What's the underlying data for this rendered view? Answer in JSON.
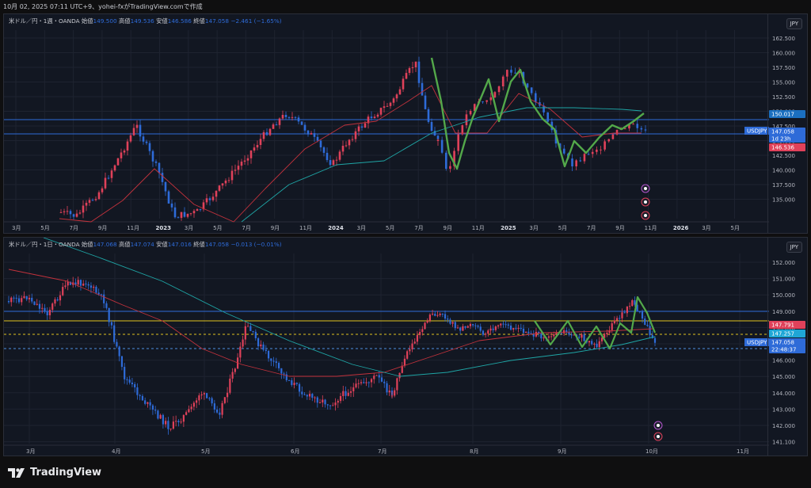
{
  "header": {
    "text": "10月 02, 2025 07:11 UTC+9、yohei-fxがTradingView.comで作成"
  },
  "colors": {
    "bull": "#e0415a",
    "bear": "#2e6bd8",
    "ma_red": "#c2323c",
    "ma_teal": "#1fa6a6",
    "green": "#53a84a",
    "bg": "#121722",
    "grid": "#1e2330"
  },
  "weekly": {
    "legend": {
      "symbol": "米ドル／円・1週・OANDA",
      "open_label": "始値",
      "open": "149.500",
      "high_label": "高値",
      "high": "149.536",
      "low_label": "安値",
      "low": "146.586",
      "close_label": "終値",
      "close": "147.058",
      "change": "−2.461 (−1.65%)"
    },
    "currency": "JPY",
    "yticks": [
      "162.500",
      "160.000",
      "157.500",
      "155.000",
      "152.500",
      "150.000",
      "147.500",
      "145.000",
      "142.500",
      "140.000",
      "137.500",
      "135.000"
    ],
    "xticks": [
      "3月",
      "5月",
      "7月",
      "9月",
      "11月",
      "2023",
      "3月",
      "5月",
      "7月",
      "9月",
      "11月",
      "2024",
      "3月",
      "5月",
      "7月",
      "9月",
      "11月",
      "2025",
      "3月",
      "5月",
      "7月",
      "9月",
      "11月",
      "2026",
      "3月",
      "5月"
    ],
    "badges": {
      "level_blue": "150.017",
      "symbol": "USDJPY",
      "price": "147.058",
      "countdown": "1d 23h",
      "low_red": "146.536"
    }
  },
  "daily": {
    "legend": {
      "symbol": "米ドル／円・1日・OANDA",
      "open_label": "始値",
      "open": "147.068",
      "high_label": "高値",
      "high": "147.074",
      "low_label": "安値",
      "low": "147.016",
      "close_label": "終値",
      "close": "147.058",
      "change": "−0.013 (−0.01%)"
    },
    "currency": "JPY",
    "yticks": [
      "152.000",
      "151.000",
      "150.000",
      "149.000",
      "148.000",
      "147.000",
      "146.000",
      "145.000",
      "144.000",
      "143.000",
      "142.000",
      "141.100"
    ],
    "xticks": [
      "3月",
      "4月",
      "5月",
      "6月",
      "7月",
      "8月",
      "9月",
      "10月",
      "11月"
    ],
    "badges": {
      "level_red": "147.791",
      "level_cyan": "147.257",
      "symbol": "USDJPY",
      "price": "147.058",
      "countdown": "22:48:37"
    }
  },
  "brand": {
    "name": "TradingView"
  }
}
